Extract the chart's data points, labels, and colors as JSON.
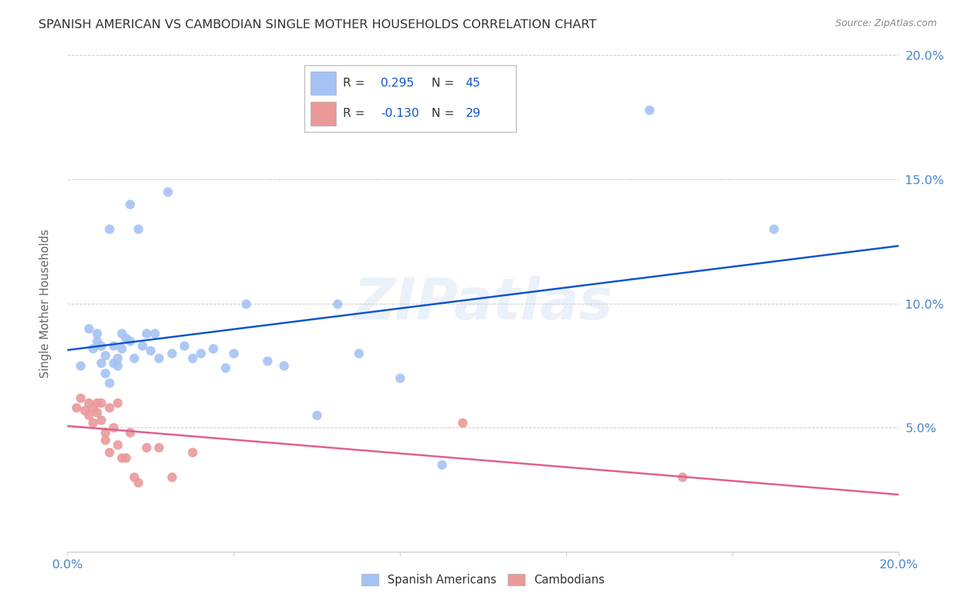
{
  "title": "SPANISH AMERICAN VS CAMBODIAN SINGLE MOTHER HOUSEHOLDS CORRELATION CHART",
  "source": "Source: ZipAtlas.com",
  "ylabel": "Single Mother Households",
  "xlim": [
    0.0,
    0.2
  ],
  "ylim": [
    0.0,
    0.2
  ],
  "x_ticks": [
    0.0,
    0.04,
    0.08,
    0.12,
    0.16,
    0.2
  ],
  "y_ticks": [
    0.0,
    0.05,
    0.1,
    0.15,
    0.2
  ],
  "background_color": "#ffffff",
  "watermark": "ZIPatlas",
  "blue_color": "#a4c2f4",
  "pink_color": "#ea9999",
  "blue_line_color": "#1155cc",
  "pink_line_color": "#e06090",
  "tick_color": "#4a86c8",
  "legend_r_blue": "0.295",
  "legend_n_blue": "45",
  "legend_r_pink": "-0.130",
  "legend_n_pink": "29",
  "spanish_x": [
    0.003,
    0.005,
    0.006,
    0.007,
    0.007,
    0.008,
    0.008,
    0.009,
    0.009,
    0.01,
    0.01,
    0.011,
    0.011,
    0.012,
    0.012,
    0.013,
    0.013,
    0.014,
    0.015,
    0.015,
    0.016,
    0.017,
    0.018,
    0.019,
    0.02,
    0.021,
    0.022,
    0.024,
    0.025,
    0.028,
    0.03,
    0.032,
    0.035,
    0.038,
    0.04,
    0.043,
    0.048,
    0.052,
    0.06,
    0.065,
    0.07,
    0.08,
    0.09,
    0.14,
    0.17
  ],
  "spanish_y": [
    0.075,
    0.09,
    0.082,
    0.088,
    0.085,
    0.076,
    0.083,
    0.072,
    0.079,
    0.068,
    0.13,
    0.076,
    0.083,
    0.075,
    0.078,
    0.082,
    0.088,
    0.086,
    0.14,
    0.085,
    0.078,
    0.13,
    0.083,
    0.088,
    0.081,
    0.088,
    0.078,
    0.145,
    0.08,
    0.083,
    0.078,
    0.08,
    0.082,
    0.074,
    0.08,
    0.1,
    0.077,
    0.075,
    0.055,
    0.1,
    0.08,
    0.07,
    0.035,
    0.178,
    0.13
  ],
  "cambodian_x": [
    0.002,
    0.003,
    0.004,
    0.005,
    0.005,
    0.006,
    0.006,
    0.007,
    0.007,
    0.008,
    0.008,
    0.009,
    0.009,
    0.01,
    0.01,
    0.011,
    0.012,
    0.012,
    0.013,
    0.014,
    0.015,
    0.016,
    0.017,
    0.019,
    0.022,
    0.025,
    0.03,
    0.095,
    0.148
  ],
  "cambodian_y": [
    0.058,
    0.062,
    0.057,
    0.06,
    0.055,
    0.058,
    0.052,
    0.056,
    0.06,
    0.053,
    0.06,
    0.045,
    0.048,
    0.058,
    0.04,
    0.05,
    0.043,
    0.06,
    0.038,
    0.038,
    0.048,
    0.03,
    0.028,
    0.042,
    0.042,
    0.03,
    0.04,
    0.052,
    0.03
  ]
}
